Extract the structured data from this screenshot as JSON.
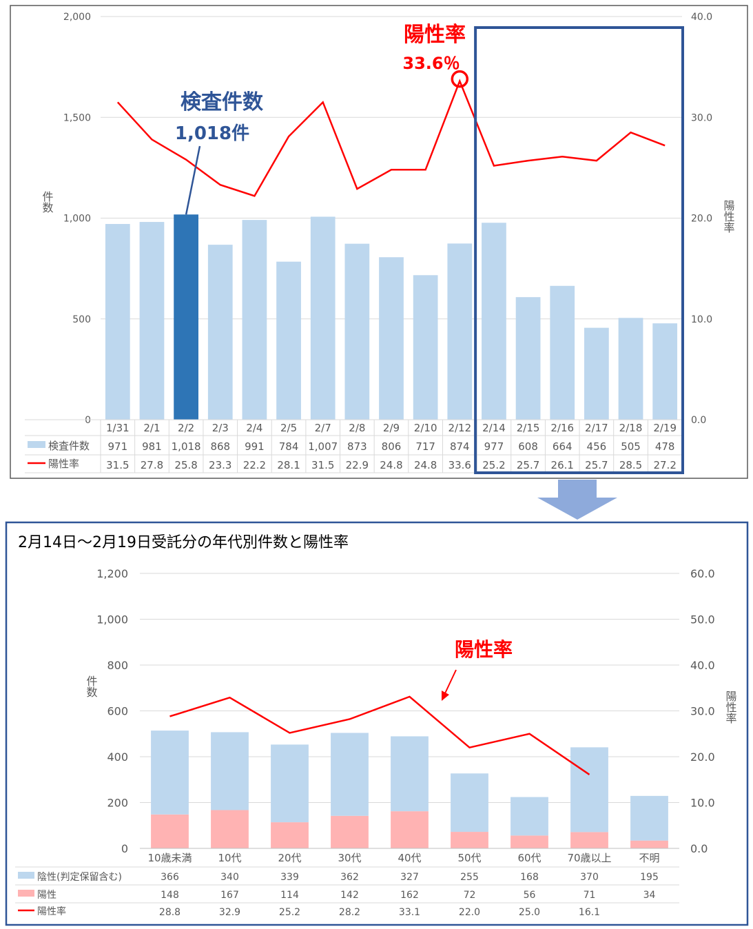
{
  "colors": {
    "bar_light": "#bdd7ee",
    "bar_highlight": "#2e75b6",
    "line_red": "#ff0000",
    "positive_pink": "#ffb3b3",
    "frame_navy": "#2f5597",
    "annotation_blue": "#2f5597",
    "arrow_fill": "#8eaadb",
    "grid": "#d9d9d9",
    "text_gray": "#595959"
  },
  "top": {
    "annotation_tests_title": "検査件数",
    "annotation_tests_value": "1,018件",
    "annotation_rate_title": "陽性率",
    "annotation_rate_value": "33.6％",
    "y_left_label": "件数",
    "y_right_label": "陽性率",
    "legend_tests": "検査件数",
    "legend_rate": "陽性率"
  },
  "bottom": {
    "title": "2月14日～2月19日受託分の年代別件数と陽性率",
    "annotation_rate": "陽性率",
    "y_left_label": "件数",
    "y_right_label": "陽性率",
    "legend_negative": "陰性(判定保留含む)",
    "legend_positive": "陽性",
    "legend_rate": "陽性率"
  },
  "chart_data": [
    {
      "type": "bar",
      "categories": [
        "1/31",
        "2/1",
        "2/2",
        "2/3",
        "2/4",
        "2/5",
        "2/7",
        "2/8",
        "2/9",
        "2/10",
        "2/12",
        "2/14",
        "2/15",
        "2/16",
        "2/17",
        "2/18",
        "2/19"
      ],
      "series": [
        {
          "name": "検査件数",
          "type": "bar",
          "axis": "left",
          "values": [
            971,
            981,
            1018,
            868,
            991,
            784,
            1007,
            873,
            806,
            717,
            874,
            977,
            608,
            664,
            456,
            505,
            478
          ],
          "labels": [
            "971",
            "981",
            "1,018",
            "868",
            "991",
            "784",
            "1,007",
            "873",
            "806",
            "717",
            "874",
            "977",
            "608",
            "664",
            "456",
            "505",
            "478"
          ]
        },
        {
          "name": "陽性率",
          "type": "line",
          "axis": "right",
          "values": [
            31.5,
            27.8,
            25.8,
            23.3,
            22.2,
            28.1,
            31.5,
            22.9,
            24.8,
            24.8,
            33.6,
            25.2,
            25.7,
            26.1,
            25.7,
            28.5,
            27.2
          ],
          "labels": [
            "31.5",
            "27.8",
            "25.8",
            "23.3",
            "22.2",
            "28.1",
            "31.5",
            "22.9",
            "24.8",
            "24.8",
            "33.6",
            "25.2",
            "25.7",
            "26.1",
            "25.7",
            "28.5",
            "27.2"
          ]
        }
      ],
      "highlight_category": "2/2",
      "highlight_range": [
        "2/14",
        "2/19"
      ],
      "y_left": {
        "min": 0,
        "max": 2000,
        "ticks": [
          0,
          500,
          1000,
          1500,
          2000
        ],
        "tick_labels": [
          "0",
          "500",
          "1,000",
          "1,500",
          "2,000"
        ]
      },
      "y_right": {
        "min": 0,
        "max": 40,
        "ticks": [
          0,
          10,
          20,
          30,
          40
        ],
        "tick_labels": [
          "0.0",
          "10.0",
          "20.0",
          "30.0",
          "40.0"
        ]
      },
      "grid": true,
      "legend": "data-table"
    },
    {
      "type": "bar",
      "stacked": true,
      "categories": [
        "10歳未満",
        "10代",
        "20代",
        "30代",
        "40代",
        "50代",
        "60代",
        "70歳以上",
        "不明"
      ],
      "series": [
        {
          "name": "陰性(判定保留含む)",
          "type": "bar",
          "axis": "left",
          "values": [
            366,
            340,
            339,
            362,
            327,
            255,
            168,
            370,
            195
          ],
          "labels": [
            "366",
            "340",
            "339",
            "362",
            "327",
            "255",
            "168",
            "370",
            "195"
          ]
        },
        {
          "name": "陽性",
          "type": "bar",
          "axis": "left",
          "values": [
            148,
            167,
            114,
            142,
            162,
            72,
            56,
            71,
            34
          ],
          "labels": [
            "148",
            "167",
            "114",
            "142",
            "162",
            "72",
            "56",
            "71",
            "34"
          ]
        },
        {
          "name": "陽性率",
          "type": "line",
          "axis": "right",
          "values": [
            28.8,
            32.9,
            25.2,
            28.2,
            33.1,
            22.0,
            25.0,
            16.1,
            null
          ],
          "labels": [
            "28.8",
            "32.9",
            "25.2",
            "28.2",
            "33.1",
            "22.0",
            "25.0",
            "16.1",
            ""
          ]
        }
      ],
      "y_left": {
        "min": 0,
        "max": 1200,
        "ticks": [
          0,
          200,
          400,
          600,
          800,
          1000,
          1200
        ],
        "tick_labels": [
          "0",
          "200",
          "400",
          "600",
          "800",
          "1,000",
          "1,200"
        ]
      },
      "y_right": {
        "min": 0,
        "max": 60,
        "ticks": [
          0,
          10,
          20,
          30,
          40,
          50,
          60
        ],
        "tick_labels": [
          "0.0",
          "10.0",
          "20.0",
          "30.0",
          "40.0",
          "50.0",
          "60.0"
        ]
      },
      "grid": true,
      "legend": "data-table"
    }
  ]
}
